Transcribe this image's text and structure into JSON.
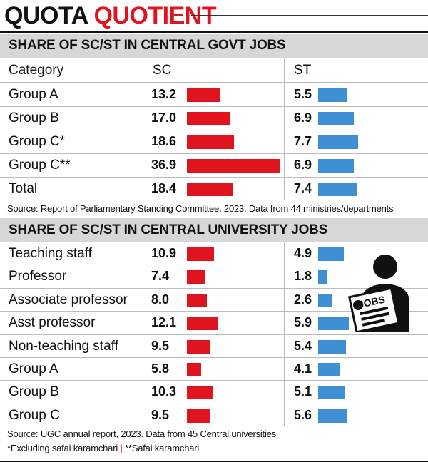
{
  "title": {
    "word1": "QUOTA",
    "word2": "QUOTIENT"
  },
  "colors": {
    "sc_bar": "#e0141e",
    "st_bar": "#3f8fd4",
    "title_accent": "#e0141e",
    "section_bg": "#d7d7d7"
  },
  "govt": {
    "heading": "SHARE OF SC/ST IN CENTRAL GOVT JOBS",
    "col_category": "Category",
    "col_sc": "SC",
    "col_st": "ST",
    "source": "Source: Report of Parliamentary Standing Committee, 2023. Data from 44 ministries/departments"
  },
  "univ": {
    "heading": "SHARE OF SC/ST IN CENTRAL UNIVERSITY JOBS",
    "source": "Source: UGC annual report, 2023. Data from 45 Central universities"
  },
  "footnotes": {
    "note1": "*Excluding safai karamchari",
    "separator": "|",
    "note2": "**Safai karamchari"
  },
  "icon": {
    "name": "jobs-seeker-icon",
    "sign_text": "JOBS"
  },
  "chart_data": [
    {
      "type": "bar",
      "title": "SHARE OF SC/ST IN CENTRAL GOVT JOBS",
      "categories": [
        "Group A",
        "Group B",
        "Group C*",
        "Group C**",
        "Total"
      ],
      "series": [
        {
          "name": "SC",
          "values": [
            13.2,
            17.0,
            18.6,
            36.9,
            18.4
          ],
          "labels": [
            "13.2",
            "17.0",
            "18.6",
            "36.9",
            "18.4"
          ]
        },
        {
          "name": "ST",
          "values": [
            5.5,
            6.9,
            7.7,
            6.9,
            7.4
          ],
          "labels": [
            "5.5",
            "6.9",
            "7.7",
            "6.9",
            "7.4"
          ]
        }
      ]
    },
    {
      "type": "bar",
      "title": "SHARE OF SC/ST IN CENTRAL UNIVERSITY JOBS",
      "categories": [
        "Teaching staff",
        "Professor",
        "Associate professor",
        "Asst professor",
        "Non-teaching staff",
        "Group A",
        "Group B",
        "Group C"
      ],
      "series": [
        {
          "name": "SC",
          "values": [
            10.9,
            7.4,
            8.0,
            12.1,
            9.5,
            5.8,
            10.3,
            9.5
          ],
          "labels": [
            "10.9",
            "7.4",
            "8.0",
            "12.1",
            "9.5",
            "5.8",
            "10.3",
            "9.5"
          ]
        },
        {
          "name": "ST",
          "values": [
            4.9,
            1.8,
            2.6,
            5.9,
            5.4,
            4.1,
            5.1,
            5.6
          ],
          "labels": [
            "4.9",
            "1.8",
            "2.6",
            "5.9",
            "5.4",
            "4.1",
            "5.1",
            "5.6"
          ]
        }
      ]
    }
  ]
}
